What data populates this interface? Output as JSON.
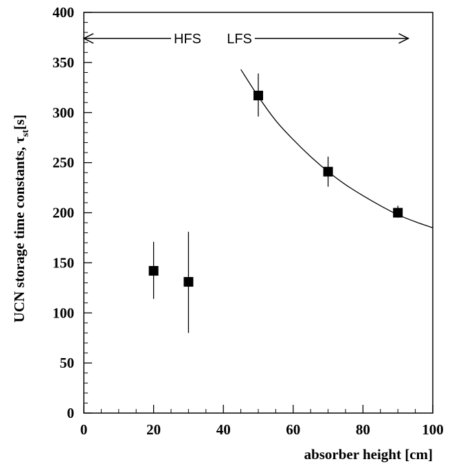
{
  "chart_data": {
    "type": "scatter",
    "title": "",
    "xlabel": "absorber height [cm]",
    "ylabel_main": "UCN storage time constants, τ",
    "ylabel_sub": "st",
    "ylabel_unit": "[s]",
    "xlim": [
      0,
      100
    ],
    "ylim": [
      0,
      400
    ],
    "x_ticks": [
      0,
      20,
      40,
      60,
      80,
      100
    ],
    "y_ticks": [
      0,
      50,
      100,
      150,
      200,
      250,
      300,
      350,
      400
    ],
    "x_minor_step": 5,
    "y_minor_step": 10,
    "grid": false,
    "series": [
      {
        "marker": "square",
        "x": [
          20,
          30,
          50,
          70,
          90
        ],
        "y": [
          142,
          131,
          317,
          241,
          200
        ],
        "y_err_low": [
          114,
          80,
          296,
          226,
          195
        ],
        "y_err_high": [
          171,
          181,
          339,
          256,
          207
        ]
      }
    ],
    "fit_curve": {
      "x_start": 45,
      "x_end": 100,
      "x": [
        45,
        50,
        55,
        60,
        65,
        70,
        75,
        80,
        85,
        90,
        95,
        100
      ],
      "y": [
        343,
        316,
        292,
        273,
        256,
        241,
        228,
        217,
        207,
        198,
        191,
        185
      ]
    },
    "annotations": [
      {
        "text": "HFS",
        "arrow": "left",
        "arrow_x": [
          0,
          25
        ],
        "y": 374
      },
      {
        "text": "LFS",
        "arrow": "right",
        "arrow_x": [
          49,
          93
        ],
        "y": 374
      }
    ]
  }
}
